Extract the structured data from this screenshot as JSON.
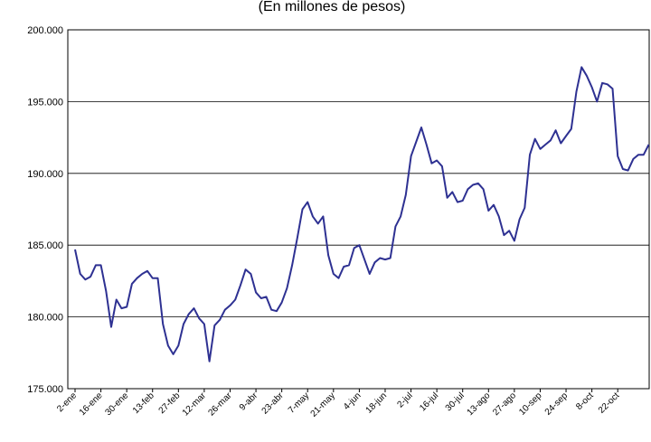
{
  "chart_data": {
    "type": "line",
    "title": "(En millones de pesos)",
    "categories": [
      "2-ene",
      null,
      null,
      null,
      null,
      "16-ene",
      null,
      null,
      null,
      null,
      "30-ene",
      null,
      null,
      null,
      null,
      "13-feb",
      null,
      null,
      null,
      null,
      "27-feb",
      null,
      null,
      null,
      null,
      "12-mar",
      null,
      null,
      null,
      null,
      "26-mar",
      null,
      null,
      null,
      null,
      "9-abr",
      null,
      null,
      null,
      null,
      "23-abr",
      null,
      null,
      null,
      null,
      "7-may",
      null,
      null,
      null,
      null,
      "21-may",
      null,
      null,
      null,
      null,
      "4-jun",
      null,
      null,
      null,
      null,
      "18-jun",
      null,
      null,
      null,
      null,
      "2-jul",
      null,
      null,
      null,
      null,
      "16-jul",
      null,
      null,
      null,
      null,
      "30-jul",
      null,
      null,
      null,
      null,
      "13-ago",
      null,
      null,
      null,
      null,
      "27-ago",
      null,
      null,
      null,
      null,
      "10-sep",
      null,
      null,
      null,
      null,
      "24-sep",
      null,
      null,
      null,
      null,
      "8-oct",
      null,
      null,
      null,
      null,
      "22-oct",
      null,
      null,
      null,
      null,
      null,
      null
    ],
    "series": [
      {
        "color": "#2E3192",
        "values": [
          184700,
          183000,
          182600,
          182800,
          183600,
          183600,
          181800,
          179300,
          181200,
          180600,
          180700,
          182300,
          182700,
          183000,
          183200,
          182700,
          182700,
          179500,
          178000,
          177400,
          178000,
          179500,
          180200,
          180600,
          179900,
          179500,
          176900,
          179400,
          179800,
          180500,
          180800,
          181200,
          182200,
          183300,
          183000,
          181700,
          181300,
          181400,
          180500,
          180400,
          181000,
          182000,
          183600,
          185500,
          187500,
          188000,
          187000,
          186500,
          187000,
          184300,
          183000,
          182700,
          183500,
          183600,
          184800,
          185000,
          184000,
          183000,
          183800,
          184100,
          184000,
          184100,
          186300,
          187000,
          188500,
          191200,
          192200,
          193200,
          192000,
          190700,
          190900,
          190500,
          188300,
          188700,
          188000,
          188100,
          188900,
          189200,
          189300,
          188900,
          187400,
          187800,
          187000,
          185700,
          186000,
          185300,
          186800,
          187600,
          191300,
          192400,
          191700,
          192000,
          192300,
          193000,
          192100,
          192600,
          193100,
          195700,
          197400,
          196800,
          196000,
          195000,
          196300,
          196200,
          195900,
          191200,
          190300,
          190200,
          191000,
          191300,
          191300,
          192000
        ]
      }
    ],
    "ylim": [
      175000,
      200000
    ],
    "yticks": [
      {
        "value": 175000,
        "label": "175.000"
      },
      {
        "value": 180000,
        "label": "180.000"
      },
      {
        "value": 185000,
        "label": "185.000"
      },
      {
        "value": 190000,
        "label": "190.000"
      },
      {
        "value": 195000,
        "label": "195.000"
      },
      {
        "value": 200000,
        "label": "200.000"
      }
    ],
    "grid": true
  }
}
